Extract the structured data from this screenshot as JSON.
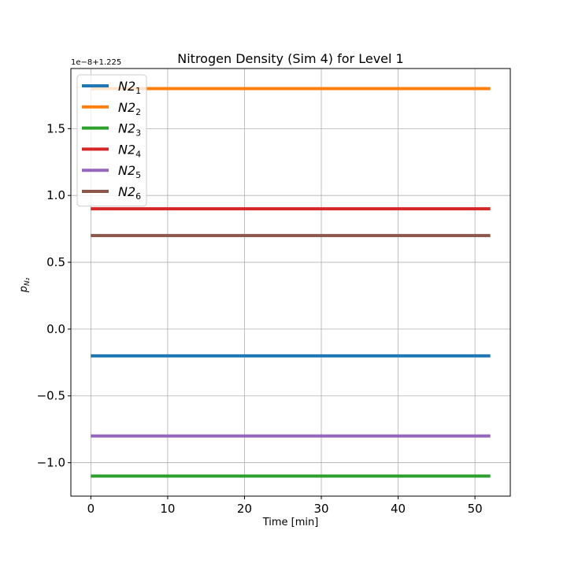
{
  "chart_data": {
    "type": "line",
    "title": "Nitrogen Density (Sim 4) for Level 1",
    "xlabel": "Time [min]",
    "ylabel": "p",
    "ylabel_subscript": "N₂",
    "offset_text": "1e−8+1.225",
    "xlim": [
      -2.6,
      54.6
    ],
    "ylim": [
      -1.25,
      1.95
    ],
    "xticks": [
      0,
      10,
      20,
      30,
      40,
      50
    ],
    "xtick_labels": [
      "0",
      "10",
      "20",
      "30",
      "40",
      "50"
    ],
    "yticks": [
      -1.0,
      -0.5,
      0.0,
      0.5,
      1.0,
      1.5
    ],
    "ytick_labels": [
      "−1.0",
      "−0.5",
      "0.0",
      "0.5",
      "1.0",
      "1.5"
    ],
    "grid": true,
    "legend_position": "top-left",
    "x": [
      0,
      52
    ],
    "series": [
      {
        "name": "N2",
        "sub": "1",
        "color": "#1f77b4",
        "values": [
          -0.2,
          -0.2
        ]
      },
      {
        "name": "N2",
        "sub": "2",
        "color": "#ff7f0e",
        "values": [
          1.8,
          1.8
        ]
      },
      {
        "name": "N2",
        "sub": "3",
        "color": "#2ca02c",
        "values": [
          -1.1,
          -1.1
        ]
      },
      {
        "name": "N2",
        "sub": "4",
        "color": "#d62728",
        "values": [
          0.9,
          0.9
        ]
      },
      {
        "name": "N2",
        "sub": "5",
        "color": "#9467bd",
        "values": [
          -0.8,
          -0.8
        ]
      },
      {
        "name": "N2",
        "sub": "6",
        "color": "#8c564b",
        "values": [
          0.7,
          0.7
        ]
      }
    ]
  }
}
